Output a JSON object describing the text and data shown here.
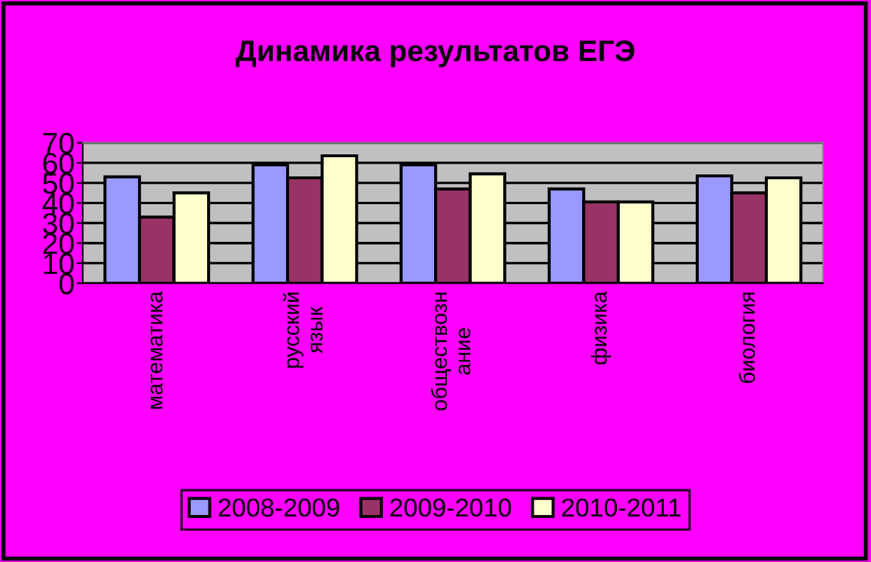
{
  "chart_data": {
    "type": "bar",
    "title": "Динамика результатов ЕГЭ",
    "categories": [
      "математика",
      "русский\nязык",
      "обществозн\nание",
      "физика",
      "биология"
    ],
    "series": [
      {
        "name": "2008-2009",
        "color": "#9999ff",
        "values": [
          53,
          59,
          59,
          47,
          53.5
        ]
      },
      {
        "name": "2009-2010",
        "color": "#993366",
        "values": [
          33,
          52.5,
          47,
          40.5,
          45
        ]
      },
      {
        "name": "2010-2011",
        "color": "#ffffcc",
        "values": [
          45,
          63.5,
          54.5,
          40.5,
          52.5
        ]
      }
    ],
    "ylim": [
      0,
      70
    ],
    "yticks": [
      0,
      10,
      20,
      30,
      40,
      50,
      60,
      70
    ],
    "grid": "y",
    "legend": "bottom"
  }
}
